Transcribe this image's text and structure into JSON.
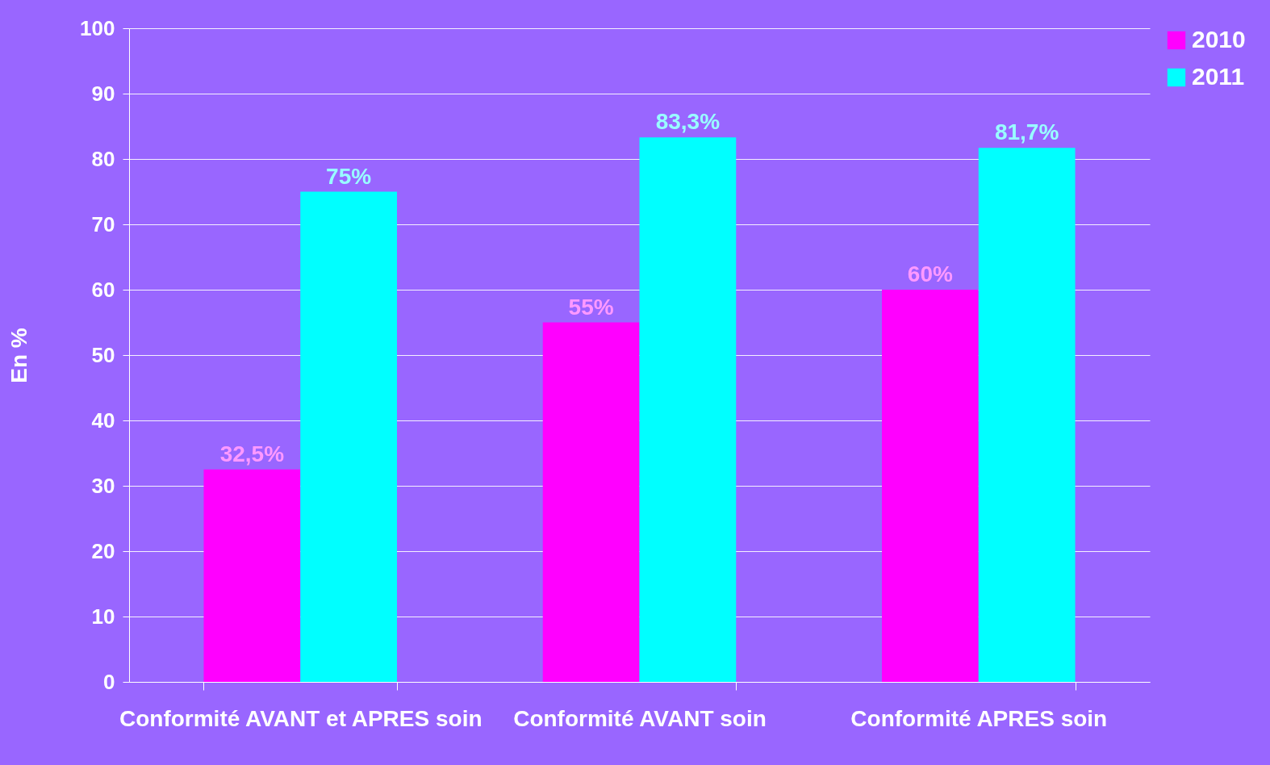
{
  "chart_data": {
    "type": "bar",
    "ylabel": "En %",
    "categories": [
      "Conformité AVANT et APRES soin",
      "Conformité AVANT soin",
      "Conformité APRES soin"
    ],
    "series": [
      {
        "name": "2010",
        "color": "#ff00ff",
        "values": [
          32.5,
          55,
          60
        ],
        "value_labels": [
          "32,5%",
          "55%",
          "60%"
        ]
      },
      {
        "name": "2011",
        "color": "#00ffff",
        "values": [
          75,
          83.3,
          81.7
        ],
        "value_labels": [
          "75%",
          "83,3%",
          "81,7%"
        ]
      }
    ],
    "ylim": [
      0,
      100
    ],
    "yticks": [
      0,
      10,
      20,
      30,
      40,
      50,
      60,
      70,
      80,
      90,
      100
    ],
    "grid": "y",
    "legend": "right"
  }
}
